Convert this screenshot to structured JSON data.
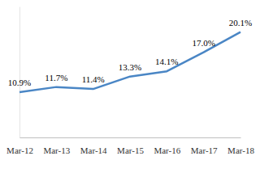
{
  "chart_data": {
    "type": "line",
    "categories": [
      "Mar-12",
      "Mar-13",
      "Mar-14",
      "Mar-15",
      "Mar-16",
      "Mar-17",
      "Mar-18"
    ],
    "values": [
      10.9,
      11.7,
      11.4,
      13.3,
      14.1,
      17.0,
      20.1
    ],
    "value_labels": [
      "10.9%",
      "11.7%",
      "11.4%",
      "13.3%",
      "14.1%",
      "17.0%",
      "20.1%"
    ],
    "color": "#4a86c5",
    "ylim": [
      4,
      24
    ],
    "yticks": [],
    "data_labels": true,
    "tick_labels": "x",
    "grid": false
  }
}
